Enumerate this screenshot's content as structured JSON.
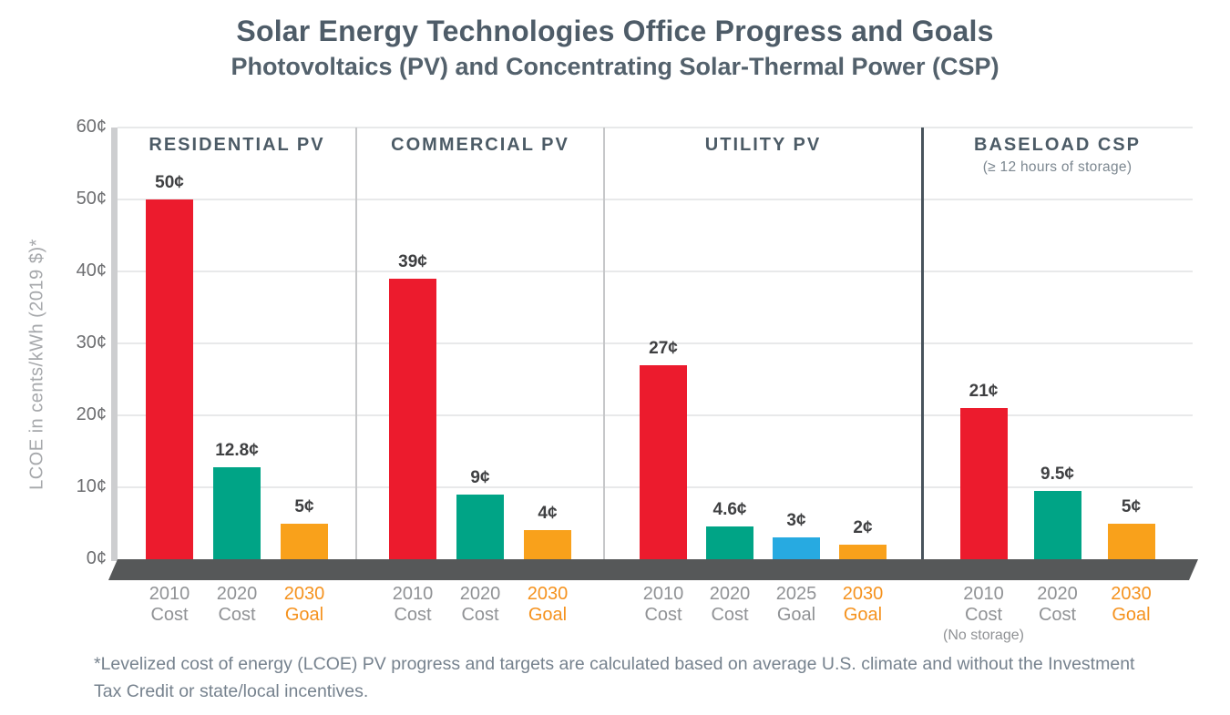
{
  "title": "Solar Energy Technologies Office Progress and Goals",
  "subtitle": "Photovoltaics (PV) and Concentrating Solar-Thermal Power (CSP)",
  "footnote": "*Levelized cost of energy (LCOE) PV progress and targets are calculated based on average U.S. climate and without the Investment Tax Credit or state/local incentives.",
  "colors": {
    "slate": "#4E5C68",
    "slate-light": "#53616C",
    "header": "#4C5B66",
    "subheader": "#7C8790",
    "axis-title": "#A6A8AB",
    "tick": "#6D6E71",
    "value-label": "#3F4042",
    "gray-label": "#909295",
    "orange-label": "#F5921E",
    "footnote": "#76828E",
    "grid": "#E8E9EA",
    "wall": "#CDCED0",
    "floor": "#565859",
    "divider-light": "#C6C7C9",
    "divider-dark": "#48535C",
    "red": "#EC1B2D",
    "teal": "#00A486",
    "orange": "#F9A11B",
    "blue": "#27AAE1"
  },
  "chart_data": {
    "type": "bar",
    "title": "Solar Energy Technologies Office Progress and Goals",
    "subtitle": "Photovoltaics (PV) and Concentrating Solar-Thermal Power (CSP)",
    "ylabel": "LCOE in cents/kWh (2019 $)*",
    "ylim": [
      0,
      60
    ],
    "grid": true,
    "yticks": [
      {
        "value": 60,
        "label": "60¢"
      },
      {
        "value": 50,
        "label": "50¢"
      },
      {
        "value": 40,
        "label": "40¢"
      },
      {
        "value": 30,
        "label": "30¢"
      },
      {
        "value": 20,
        "label": "20¢"
      },
      {
        "value": 10,
        "label": "10¢"
      },
      {
        "value": 0,
        "label": "0¢"
      }
    ],
    "panels": [
      {
        "header": "RESIDENTIAL PV",
        "bars": [
          {
            "year": "2010",
            "kind": "Cost",
            "value": 50,
            "display": "50¢",
            "color": "red",
            "label_color": "gray"
          },
          {
            "year": "2020",
            "kind": "Cost",
            "value": 12.8,
            "display": "12.8¢",
            "color": "teal",
            "label_color": "gray"
          },
          {
            "year": "2030",
            "kind": "Goal",
            "value": 5,
            "display": "5¢",
            "color": "orange",
            "label_color": "orange"
          }
        ]
      },
      {
        "header": "COMMERCIAL PV",
        "bars": [
          {
            "year": "2010",
            "kind": "Cost",
            "value": 39,
            "display": "39¢",
            "color": "red",
            "label_color": "gray"
          },
          {
            "year": "2020",
            "kind": "Cost",
            "value": 9,
            "display": "9¢",
            "color": "teal",
            "label_color": "gray"
          },
          {
            "year": "2030",
            "kind": "Goal",
            "value": 4,
            "display": "4¢",
            "color": "orange",
            "label_color": "orange"
          }
        ]
      },
      {
        "header": "UTILITY PV",
        "bars": [
          {
            "year": "2010",
            "kind": "Cost",
            "value": 27,
            "display": "27¢",
            "color": "red",
            "label_color": "gray"
          },
          {
            "year": "2020",
            "kind": "Cost",
            "value": 4.6,
            "display": "4.6¢",
            "color": "teal",
            "label_color": "gray"
          },
          {
            "year": "2025",
            "kind": "Goal",
            "value": 3,
            "display": "3¢",
            "color": "blue",
            "label_color": "gray"
          },
          {
            "year": "2030",
            "kind": "Goal",
            "value": 2,
            "display": "2¢",
            "color": "orange",
            "label_color": "orange"
          }
        ]
      },
      {
        "header": "BASELOAD CSP",
        "subheader": "(≥ 12 hours of storage)",
        "bars": [
          {
            "year": "2010",
            "kind": "Cost",
            "note": "(No storage)",
            "value": 21,
            "display": "21¢",
            "color": "red",
            "label_color": "gray"
          },
          {
            "year": "2020",
            "kind": "Cost",
            "value": 9.5,
            "display": "9.5¢",
            "color": "teal",
            "label_color": "gray"
          },
          {
            "year": "2030",
            "kind": "Goal",
            "value": 5,
            "display": "5¢",
            "color": "orange",
            "label_color": "orange"
          }
        ]
      }
    ]
  }
}
